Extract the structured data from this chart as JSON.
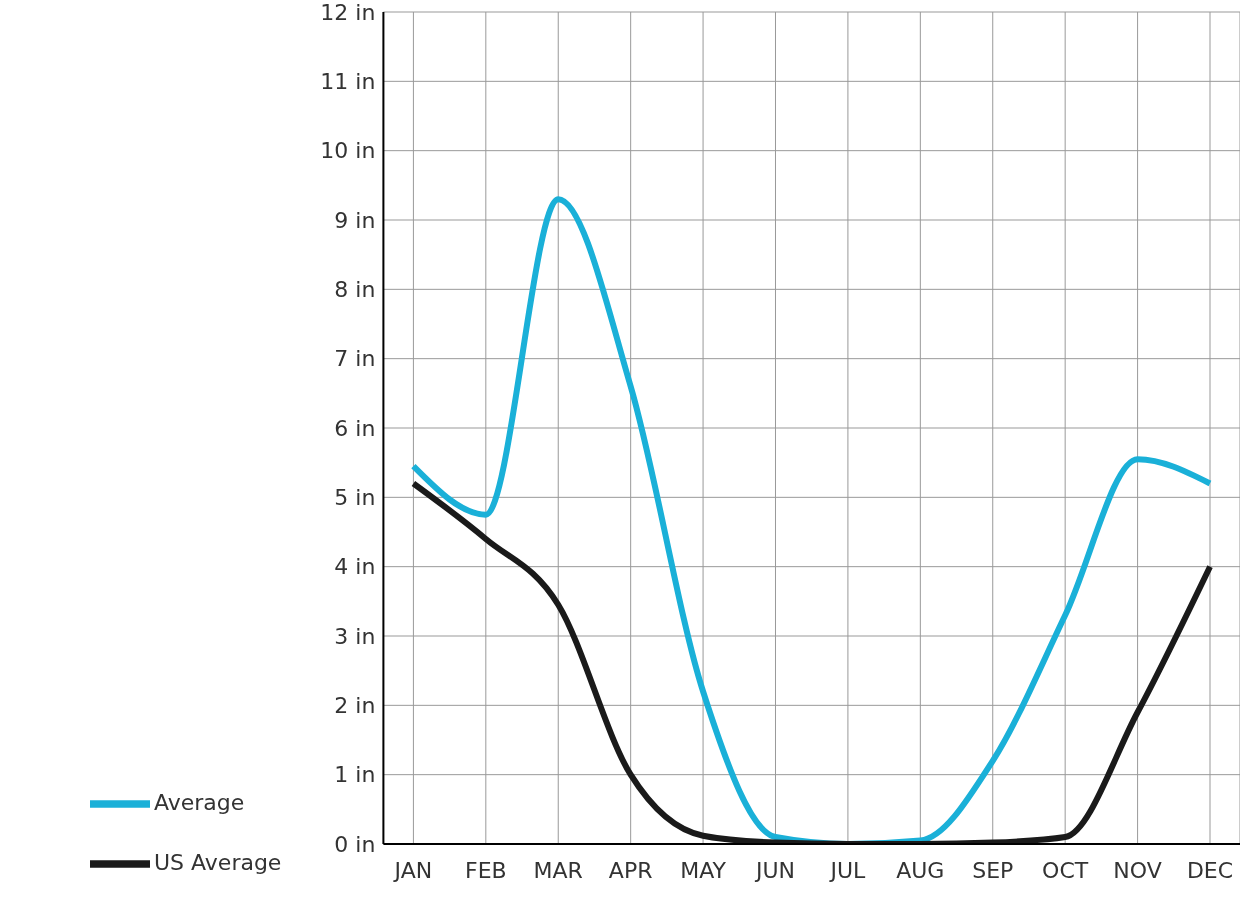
{
  "chart_data": {
    "type": "line",
    "categories": [
      "JAN",
      "FEB",
      "MAR",
      "APR",
      "MAY",
      "JUN",
      "JUL",
      "AUG",
      "SEP",
      "OCT",
      "NOV",
      "DEC"
    ],
    "series": [
      {
        "name": "Average",
        "color": "#1ab0d8",
        "values": [
          5.45,
          4.75,
          9.3,
          6.6,
          2.2,
          0.1,
          0,
          0.05,
          1.2,
          3.3,
          5.55,
          5.2
        ]
      },
      {
        "name": "US Average",
        "color": "#1a1a1a",
        "values": [
          5.2,
          4.4,
          3.45,
          1.0,
          0.12,
          0.02,
          0,
          0,
          0.02,
          0.1,
          1.9,
          4.0
        ]
      }
    ],
    "ylim": [
      0,
      12
    ],
    "yticks": [
      {
        "value": 0,
        "label": "0 in"
      },
      {
        "value": 1,
        "label": "1 in"
      },
      {
        "value": 2,
        "label": "2 in"
      },
      {
        "value": 3,
        "label": "3 in"
      },
      {
        "value": 4,
        "label": "4 in"
      },
      {
        "value": 5,
        "label": "5 in"
      },
      {
        "value": 6,
        "label": "6 in"
      },
      {
        "value": 7,
        "label": "7 in"
      },
      {
        "value": 8,
        "label": "8 in"
      },
      {
        "value": 9,
        "label": "9 in"
      },
      {
        "value": 10,
        "label": "10 in"
      },
      {
        "value": 11,
        "label": "11 in"
      },
      {
        "value": 12,
        "label": "12 in"
      }
    ],
    "grid": true,
    "legend": "bottom left",
    "marker": "none",
    "line_style": "solid"
  }
}
